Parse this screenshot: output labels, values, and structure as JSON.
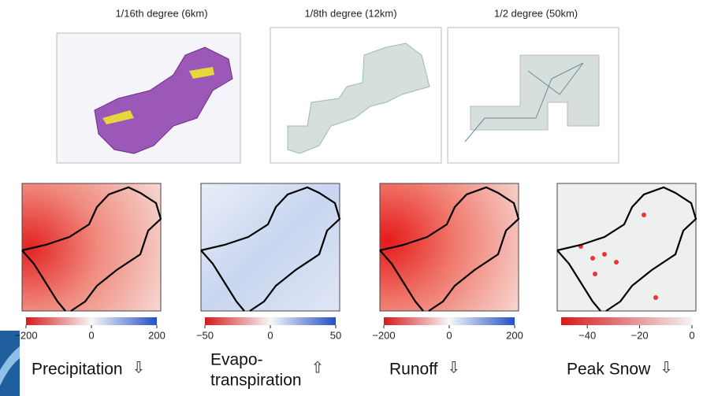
{
  "top_panels": [
    {
      "title": "1/16th degree (6km)"
    },
    {
      "title": "1/8th degree (12km)"
    },
    {
      "title": "1/2 degree (50km)"
    }
  ],
  "maps": [
    {
      "label": [
        "Precipitation"
      ],
      "arrow": "⇩",
      "range": [
        -200,
        200
      ],
      "ticks": [
        {
          "value": -200,
          "label": "−200"
        },
        0,
        200
      ]
    },
    {
      "label": [
        "Evapo-",
        "transpiration"
      ],
      "arrow": "⇧",
      "range": [
        -50,
        50
      ],
      "ticks": [
        {
          "value": -50,
          "label": "−50"
        },
        0,
        50
      ]
    },
    {
      "label": [
        "Runoff"
      ],
      "arrow": "⇩",
      "range": [
        -200,
        200
      ],
      "ticks": [
        {
          "value": -200,
          "label": "−200"
        },
        0,
        200
      ]
    },
    {
      "label": [
        "Peak Snow"
      ],
      "arrow": "⇩",
      "range": [
        -50,
        0
      ],
      "ticks": [
        {
          "value": -40,
          "label": "−40"
        },
        {
          "value": -20,
          "label": "−20"
        },
        0
      ]
    }
  ]
}
